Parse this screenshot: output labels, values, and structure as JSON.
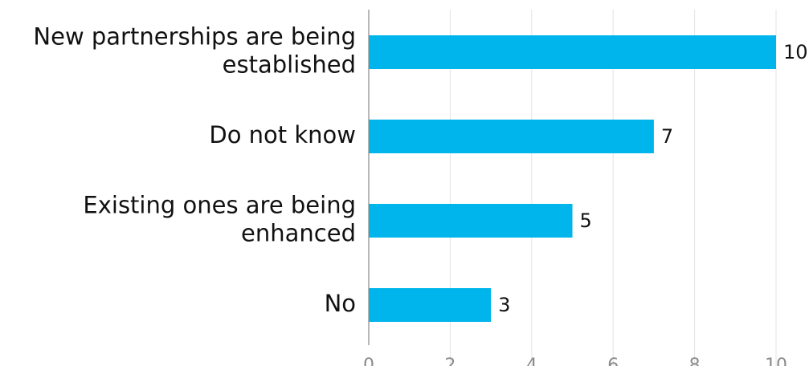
{
  "chart_data": {
    "type": "bar",
    "orientation": "horizontal",
    "categories": [
      [
        "New partnerships are being",
        "established"
      ],
      [
        "Do not know"
      ],
      [
        "Existing ones are being",
        "enhanced"
      ],
      [
        "No"
      ]
    ],
    "values": [
      10,
      7,
      5,
      3
    ],
    "xlim": [
      0,
      10
    ],
    "x_ticks": [
      0,
      2,
      4,
      6,
      8,
      10
    ],
    "grid": true,
    "colors": {
      "bar": "#00b5eb",
      "text": "#111111",
      "tick": "#8a8a8a",
      "grid": "#e3e3e3"
    }
  }
}
